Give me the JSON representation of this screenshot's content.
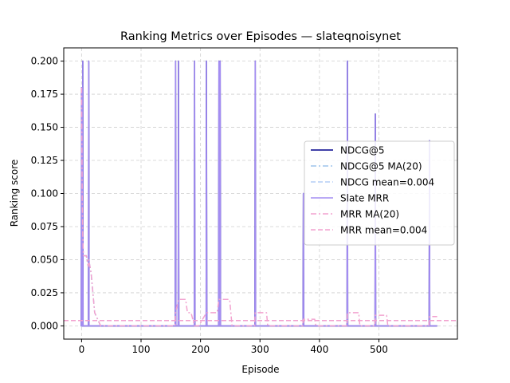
{
  "chart_data": {
    "type": "line",
    "title": "Ranking Metrics over Episodes — slateqnoisynet",
    "xlabel": "Episode",
    "ylabel": "Ranking score",
    "xlim": [
      -30,
      632
    ],
    "ylim": [
      -0.01,
      0.21
    ],
    "xticks": [
      0,
      100,
      200,
      300,
      400,
      500
    ],
    "yticks": [
      0.0,
      0.025,
      0.05,
      0.075,
      0.1,
      0.125,
      0.15,
      0.175,
      0.2
    ],
    "ytick_labels": [
      "0.000",
      "0.025",
      "0.050",
      "0.075",
      "0.100",
      "0.125",
      "0.150",
      "0.175",
      "0.200"
    ],
    "grid": true,
    "legend_position": "right",
    "series": [
      {
        "name": "NDCG@5",
        "color": "#00008b",
        "style": "solid",
        "spikes": [
          [
            0,
            0.18
          ],
          [
            2,
            0.2
          ],
          [
            12,
            0.2
          ],
          [
            158,
            0.2
          ],
          [
            163,
            0.2
          ],
          [
            190,
            0.2
          ],
          [
            210,
            0.2
          ],
          [
            231,
            0.2
          ],
          [
            233,
            0.2
          ],
          [
            292,
            0.2
          ],
          [
            373,
            0.1
          ],
          [
            447,
            0.2
          ],
          [
            494,
            0.16
          ],
          [
            585,
            0.14
          ]
        ]
      },
      {
        "name": "NDCG@5 MA(20)",
        "color": "#9ec3ec",
        "style": "dashdot",
        "points": [
          [
            0,
            0.18
          ],
          [
            1,
            0.1
          ],
          [
            2,
            0.067
          ],
          [
            3,
            0.053
          ],
          [
            5,
            0.053
          ],
          [
            8,
            0.053
          ],
          [
            11,
            0.045
          ],
          [
            12,
            0.05
          ],
          [
            16,
            0.04
          ],
          [
            20,
            0.02
          ],
          [
            22,
            0.01
          ],
          [
            32,
            0.0
          ]
        ]
      },
      {
        "name": "NDCG mean=0.004",
        "color": "#b3cdf5",
        "style": "dashed",
        "value": 0.004
      },
      {
        "name": "Slate MRR",
        "color": "#a48df2",
        "style": "solid",
        "spikes": [
          [
            0,
            0.18
          ],
          [
            2,
            0.2
          ],
          [
            12,
            0.2
          ],
          [
            158,
            0.2
          ],
          [
            163,
            0.2
          ],
          [
            190,
            0.2
          ],
          [
            210,
            0.2
          ],
          [
            231,
            0.2
          ],
          [
            233,
            0.2
          ],
          [
            292,
            0.2
          ],
          [
            373,
            0.1
          ],
          [
            447,
            0.2
          ],
          [
            494,
            0.16
          ],
          [
            585,
            0.14
          ]
        ]
      },
      {
        "name": "MRR MA(20)",
        "color": "#f2a2cf",
        "style": "dashdot",
        "points": [
          [
            0,
            0.18
          ],
          [
            1,
            0.1
          ],
          [
            2,
            0.067
          ],
          [
            3,
            0.053
          ],
          [
            5,
            0.053
          ],
          [
            8,
            0.053
          ],
          [
            11,
            0.045
          ],
          [
            12,
            0.05
          ],
          [
            16,
            0.04
          ],
          [
            20,
            0.02
          ],
          [
            22,
            0.01
          ],
          [
            32,
            0.0
          ],
          [
            157,
            0.0
          ],
          [
            158,
            0.01
          ],
          [
            163,
            0.02
          ],
          [
            175,
            0.02
          ],
          [
            178,
            0.01
          ],
          [
            184,
            0.01
          ],
          [
            190,
            0.0
          ],
          [
            197,
            0.0
          ],
          [
            210,
            0.01
          ],
          [
            228,
            0.01
          ],
          [
            231,
            0.02
          ],
          [
            249,
            0.02
          ],
          [
            251,
            0.01
          ],
          [
            253,
            0.0
          ],
          [
            291,
            0.0
          ],
          [
            292,
            0.01
          ],
          [
            311,
            0.01
          ],
          [
            313,
            0.0
          ],
          [
            372,
            0.0
          ],
          [
            373,
            0.005
          ],
          [
            392,
            0.005
          ],
          [
            394,
            0.0
          ],
          [
            446,
            0.0
          ],
          [
            447,
            0.01
          ],
          [
            466,
            0.01
          ],
          [
            468,
            0.0
          ],
          [
            493,
            0.0
          ],
          [
            494,
            0.008
          ],
          [
            513,
            0.008
          ],
          [
            515,
            0.0
          ],
          [
            584,
            0.0
          ],
          [
            585,
            0.007
          ],
          [
            598,
            0.007
          ]
        ]
      },
      {
        "name": "MRR mean=0.004",
        "color": "#f2a2cf",
        "style": "dashed",
        "value": 0.004
      }
    ],
    "episode_max": 598
  }
}
